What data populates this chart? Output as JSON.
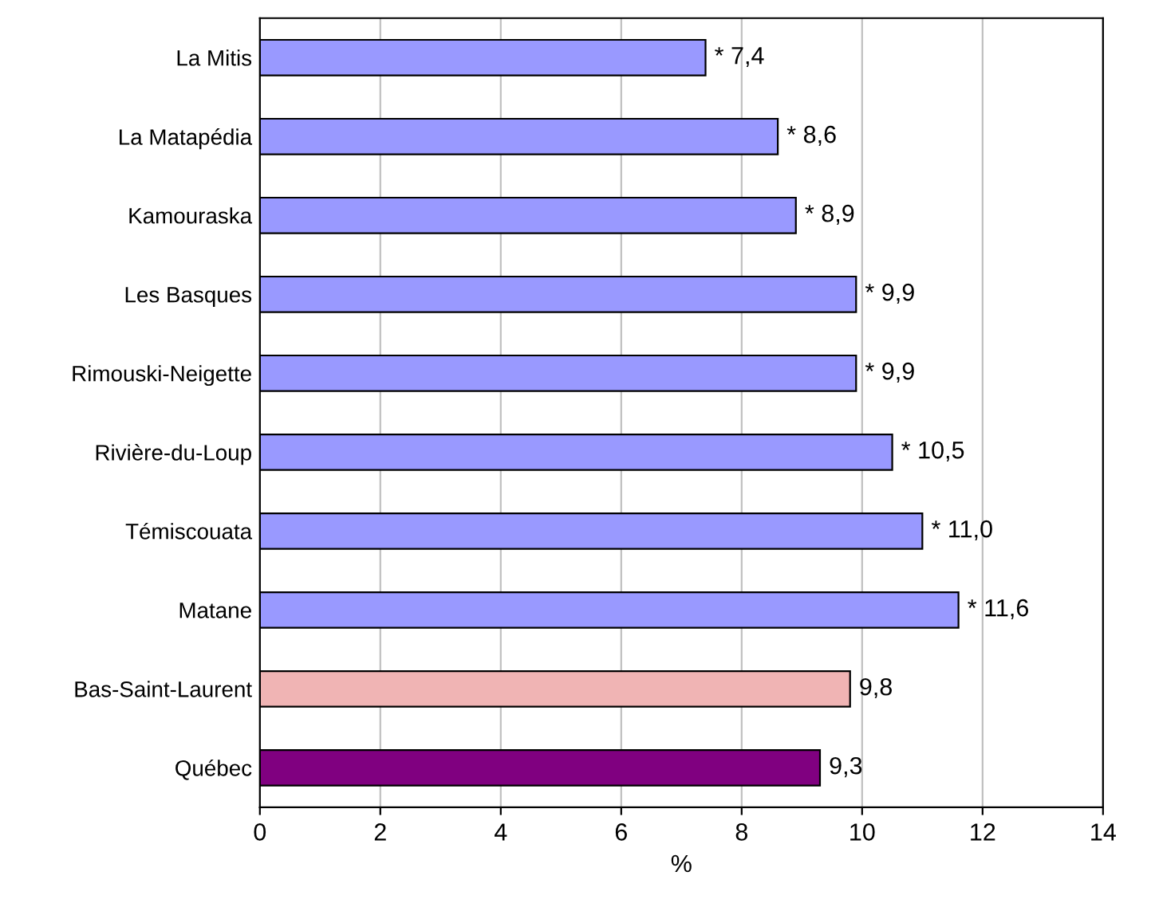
{
  "chart_data": {
    "type": "bar",
    "orientation": "horizontal",
    "xlabel": "%",
    "categories": [
      "La Mitis",
      "La Matapédia",
      "Kamouraska",
      "Les Basques",
      "Rimouski-Neigette",
      "Rivière-du-Loup",
      "Témiscouata",
      "Matane",
      "Bas-Saint-Laurent",
      "Québec"
    ],
    "values": [
      7.4,
      8.6,
      8.9,
      9.9,
      9.9,
      10.5,
      11.0,
      11.6,
      9.8,
      9.3
    ],
    "colors": [
      "#9999ff",
      "#9999ff",
      "#9999ff",
      "#9999ff",
      "#9999ff",
      "#9999ff",
      "#9999ff",
      "#9999ff",
      "#f0b4b4",
      "#800080"
    ],
    "value_labels": [
      "* 7,4",
      "* 8,6",
      "* 8,9",
      "* 9,9",
      "* 9,9",
      "* 10,5",
      "* 11,0",
      "* 11,6",
      "9,8",
      "9,3"
    ],
    "xlim": [
      0,
      14
    ],
    "xticks": [
      0,
      2,
      4,
      6,
      8,
      10,
      12,
      14
    ],
    "grid": "x"
  }
}
